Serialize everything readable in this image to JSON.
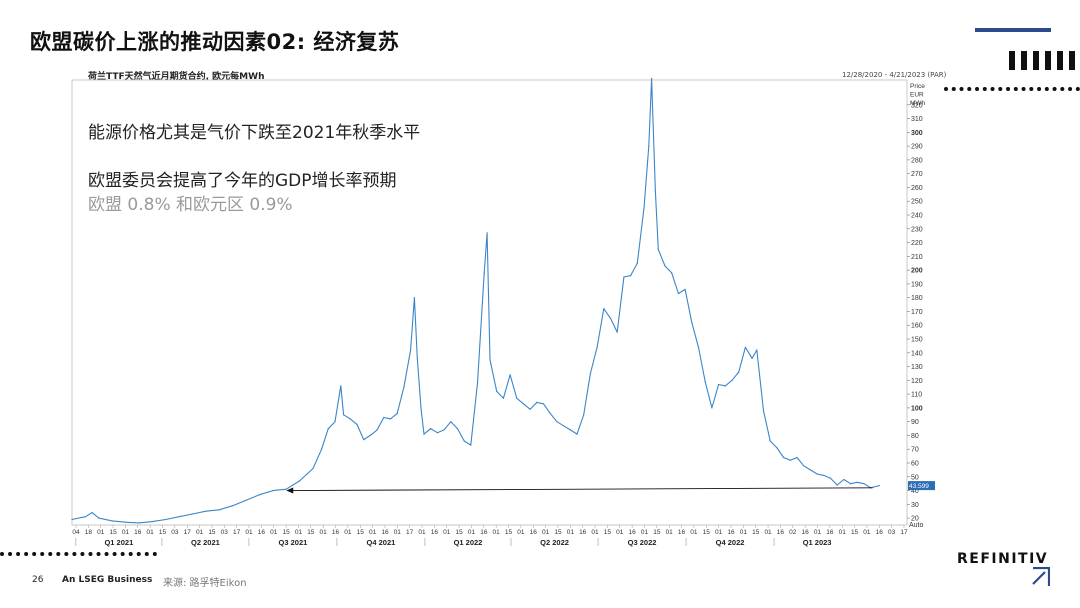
{
  "slide": {
    "title": "欧盟碳价上涨的推动因素02: 经济复苏",
    "page_number": "26",
    "company_tagline": "An LSEG Business",
    "source": "来源: 路孚特Eikon",
    "brand": "REFINITIV",
    "brand_mark_symbol": "↗",
    "colors": {
      "accent_line": "#2c4a8c",
      "series": "#3a86c8",
      "last_value_tag": "#2d6db4"
    }
  },
  "notes": {
    "line1": "能源价格尤其是气价下跌至2021年秋季水平",
    "line2": "欧盟委员会提高了今年的GDP增长率预期",
    "line3": "欧盟 0.8% 和欧元区 0.9%"
  },
  "chart_data": {
    "type": "line",
    "title": "荷兰TTF天然气近月期货合约, 欧元每MWh",
    "date_range_label": "12/28/2020 - 4/21/2023 (PAR)",
    "y_axis_title": [
      "Price",
      "EUR",
      "MWh"
    ],
    "y_axis_bottom_label": "Auto",
    "ylim": [
      15,
      338
    ],
    "y_ticks": [
      20,
      30,
      40,
      50,
      60,
      70,
      80,
      90,
      100,
      110,
      120,
      130,
      140,
      150,
      160,
      170,
      180,
      190,
      200,
      210,
      220,
      230,
      240,
      250,
      260,
      270,
      280,
      290,
      300,
      310,
      320
    ],
    "y_ticks_bold": [
      100,
      200,
      300
    ],
    "last_value": "43.599",
    "grid": false,
    "x_tick_labels": [
      "04",
      "18",
      "01",
      "15",
      "01",
      "16",
      "01",
      "15",
      "03",
      "17",
      "01",
      "15",
      "03",
      "17",
      "01",
      "16",
      "01",
      "15",
      "01",
      "15",
      "01",
      "16",
      "01",
      "15",
      "01",
      "16",
      "01",
      "17",
      "01",
      "16",
      "01",
      "15",
      "01",
      "16",
      "01",
      "15",
      "01",
      "16",
      "01",
      "15",
      "01",
      "16",
      "01",
      "15",
      "01",
      "16",
      "01",
      "15",
      "01",
      "16",
      "01",
      "15",
      "01",
      "16",
      "01",
      "15",
      "01",
      "16",
      "02",
      "16",
      "01",
      "16",
      "01",
      "15",
      "01",
      "16",
      "03",
      "17"
    ],
    "quarters": [
      "Q1 2021",
      "Q2 2021",
      "Q3 2021",
      "Q4 2021",
      "Q1 2022",
      "Q2 2022",
      "Q3 2022",
      "Q4 2022",
      "Q1 2023"
    ],
    "series": [
      {
        "points": [
          [
            "2020-12-28",
            19
          ],
          [
            "2021-01-11",
            21
          ],
          [
            "2021-01-18",
            24
          ],
          [
            "2021-01-25",
            20
          ],
          [
            "2021-02-08",
            18
          ],
          [
            "2021-02-22",
            17
          ],
          [
            "2021-03-08",
            16.5
          ],
          [
            "2021-03-22",
            17.5
          ],
          [
            "2021-04-05",
            19
          ],
          [
            "2021-04-19",
            21
          ],
          [
            "2021-05-03",
            23
          ],
          [
            "2021-05-17",
            25
          ],
          [
            "2021-05-31",
            26
          ],
          [
            "2021-06-14",
            29
          ],
          [
            "2021-06-28",
            33
          ],
          [
            "2021-07-12",
            37
          ],
          [
            "2021-07-26",
            40
          ],
          [
            "2021-08-09",
            41
          ],
          [
            "2021-08-23",
            47
          ],
          [
            "2021-09-06",
            56
          ],
          [
            "2021-09-15",
            70
          ],
          [
            "2021-09-22",
            85
          ],
          [
            "2021-09-29",
            90
          ],
          [
            "2021-10-05",
            116
          ],
          [
            "2021-10-08",
            95
          ],
          [
            "2021-10-15",
            92
          ],
          [
            "2021-10-22",
            88
          ],
          [
            "2021-10-29",
            77
          ],
          [
            "2021-11-05",
            80
          ],
          [
            "2021-11-12",
            84
          ],
          [
            "2021-11-19",
            93
          ],
          [
            "2021-11-26",
            92
          ],
          [
            "2021-12-03",
            96
          ],
          [
            "2021-12-10",
            115
          ],
          [
            "2021-12-17",
            142
          ],
          [
            "2021-12-21",
            180
          ],
          [
            "2021-12-24",
            136
          ],
          [
            "2021-12-28",
            99
          ],
          [
            "2021-12-31",
            81
          ],
          [
            "2022-01-07",
            85
          ],
          [
            "2022-01-14",
            82
          ],
          [
            "2022-01-21",
            84
          ],
          [
            "2022-01-28",
            90
          ],
          [
            "2022-02-04",
            85
          ],
          [
            "2022-02-11",
            76
          ],
          [
            "2022-02-18",
            73
          ],
          [
            "2022-02-25",
            118
          ],
          [
            "2022-03-04",
            198
          ],
          [
            "2022-03-07",
            227
          ],
          [
            "2022-03-10",
            135
          ],
          [
            "2022-03-17",
            112
          ],
          [
            "2022-03-24",
            107
          ],
          [
            "2022-03-31",
            124
          ],
          [
            "2022-04-07",
            107
          ],
          [
            "2022-04-14",
            103
          ],
          [
            "2022-04-21",
            99
          ],
          [
            "2022-04-28",
            104
          ],
          [
            "2022-05-05",
            103
          ],
          [
            "2022-05-12",
            96
          ],
          [
            "2022-05-19",
            90
          ],
          [
            "2022-05-26",
            87
          ],
          [
            "2022-06-02",
            84
          ],
          [
            "2022-06-09",
            81
          ],
          [
            "2022-06-16",
            95
          ],
          [
            "2022-06-23",
            125
          ],
          [
            "2022-06-30",
            144
          ],
          [
            "2022-07-07",
            172
          ],
          [
            "2022-07-14",
            165
          ],
          [
            "2022-07-21",
            155
          ],
          [
            "2022-07-28",
            195
          ],
          [
            "2022-08-04",
            196
          ],
          [
            "2022-08-11",
            205
          ],
          [
            "2022-08-18",
            245
          ],
          [
            "2022-08-23",
            290
          ],
          [
            "2022-08-26",
            339
          ],
          [
            "2022-08-30",
            257
          ],
          [
            "2022-09-02",
            215
          ],
          [
            "2022-09-09",
            203
          ],
          [
            "2022-09-16",
            198
          ],
          [
            "2022-09-23",
            183
          ],
          [
            "2022-09-30",
            186
          ],
          [
            "2022-10-07",
            162
          ],
          [
            "2022-10-14",
            144
          ],
          [
            "2022-10-21",
            119
          ],
          [
            "2022-10-28",
            100
          ],
          [
            "2022-11-04",
            117
          ],
          [
            "2022-11-11",
            116
          ],
          [
            "2022-11-18",
            120
          ],
          [
            "2022-11-25",
            126
          ],
          [
            "2022-12-02",
            144
          ],
          [
            "2022-12-09",
            136
          ],
          [
            "2022-12-14",
            142
          ],
          [
            "2022-12-21",
            98
          ],
          [
            "2022-12-28",
            76
          ],
          [
            "2023-01-04",
            71
          ],
          [
            "2023-01-11",
            64
          ],
          [
            "2023-01-18",
            62
          ],
          [
            "2023-01-25",
            64
          ],
          [
            "2023-02-01",
            58
          ],
          [
            "2023-02-08",
            55
          ],
          [
            "2023-02-15",
            52
          ],
          [
            "2023-02-22",
            51
          ],
          [
            "2023-03-01",
            49
          ],
          [
            "2023-03-08",
            44
          ],
          [
            "2023-03-15",
            48
          ],
          [
            "2023-03-22",
            45
          ],
          [
            "2023-03-29",
            46
          ],
          [
            "2023-04-05",
            45
          ],
          [
            "2023-04-12",
            42
          ],
          [
            "2023-04-21",
            43.6
          ]
        ]
      }
    ],
    "annotation_arrow": {
      "from": [
        "2023-04-14",
        42
      ],
      "to": [
        "2021-08-09",
        40
      ],
      "style": "arrow"
    }
  }
}
